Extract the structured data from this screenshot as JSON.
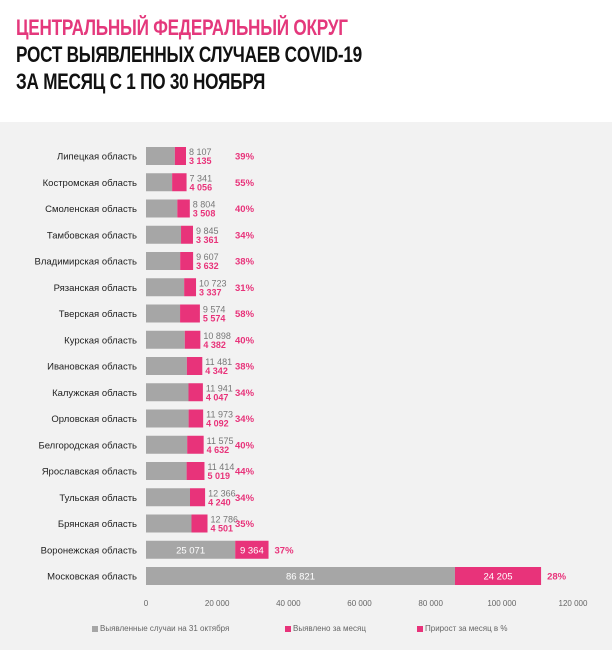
{
  "header": {
    "line1": "ЦЕНТРАЛЬНЫЙ ФЕДЕРАЛЬНЫЙ ОКРУГ",
    "line2": "РОСТ ВЫЯВЛЕННЫХ СЛУЧАЕВ COVID-19",
    "line3": "ЗА МЕСЯЦ С 1 ПО 30 НОЯБРЯ"
  },
  "colors": {
    "base": "#a6a6a6",
    "increase": "#e8337a",
    "pct": "#e8337a",
    "label": "#222222",
    "base_text": "#777777"
  },
  "legend": {
    "base": "Выявленные случаи на 31 октября",
    "increase": "Выявлено за месяц",
    "pct": "Прирост за месяц в %"
  },
  "chart_data": {
    "type": "bar",
    "orientation": "horizontal",
    "stacked": true,
    "categories": [
      "Липецкая область",
      "Костромская область",
      "Смоленская область",
      "Тамбовская область",
      "Владимирская область",
      "Рязанская область",
      "Тверская область",
      "Курская область",
      "Ивановская область",
      "Калужская область",
      "Орловская область",
      "Белгородская область",
      "Ярославская область",
      "Тульская область",
      "Брянская область",
      "Воронежская область",
      "Московская область"
    ],
    "series": [
      {
        "name": "Выявленные случаи на 31 октября",
        "values": [
          8107,
          7341,
          8804,
          9845,
          9607,
          10723,
          9574,
          10898,
          11481,
          11941,
          11973,
          11575,
          11414,
          12366,
          12786,
          25071,
          86821
        ],
        "labels": [
          "8 107",
          "7 341",
          "8 804",
          "9 845",
          "9 607",
          "10 723",
          "9 574",
          "10 898",
          "11 481",
          "11 941",
          "11 973",
          "11 575",
          "11 414",
          "12 366",
          "12 786",
          "25 071",
          "86 821"
        ]
      },
      {
        "name": "Выявлено за месяц",
        "values": [
          3135,
          4056,
          3508,
          3361,
          3632,
          3337,
          5574,
          4382,
          4342,
          4047,
          4092,
          4632,
          5019,
          4240,
          4501,
          9364,
          24205
        ],
        "labels": [
          "3 135",
          "4 056",
          "3 508",
          "3 361",
          "3 632",
          "3 337",
          "5 574",
          "4 382",
          "4 342",
          "4 047",
          "4 092",
          "4 632",
          "5 019",
          "4 240",
          "4 501",
          "9 364",
          "24 205"
        ]
      }
    ],
    "growth_percent": [
      "39%",
      "55%",
      "40%",
      "34%",
      "38%",
      "31%",
      "58%",
      "40%",
      "38%",
      "34%",
      "34%",
      "40%",
      "44%",
      "34%",
      "35%",
      "37%",
      "28%"
    ],
    "xlim": [
      0,
      120000
    ],
    "xticks": [
      0,
      20000,
      40000,
      60000,
      80000,
      100000,
      120000
    ],
    "xtick_labels": [
      "0",
      "20 000",
      "40 000",
      "60 000",
      "80 000",
      "100 000",
      "120 000"
    ],
    "grid": false,
    "legend_position": "bottom"
  }
}
